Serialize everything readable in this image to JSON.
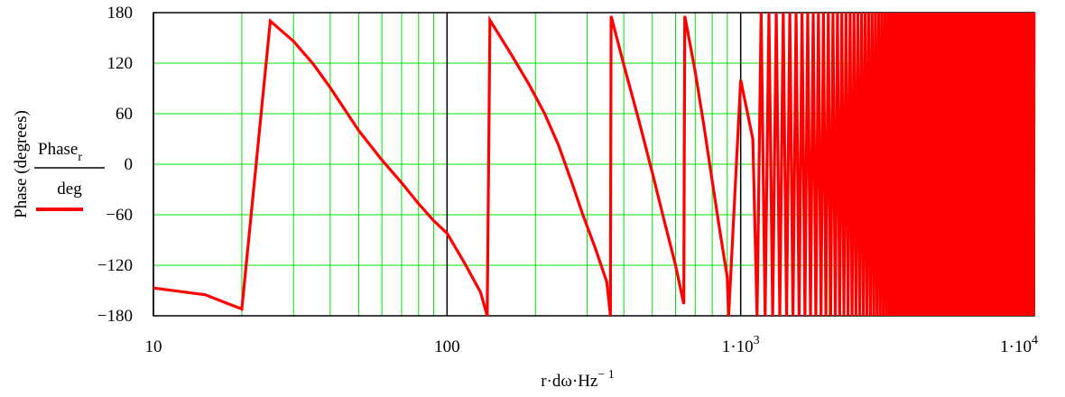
{
  "chart_data": {
    "type": "line",
    "x_scale": "log",
    "xlim": [
      10,
      10000
    ],
    "ylim": [
      -180,
      180
    ],
    "grid": true,
    "colors": {
      "series": "#ff0000",
      "minor_grid": "#00e000",
      "decade_grid": "#000000",
      "axes": "#000000"
    },
    "ylabel": "Phase (degrees)",
    "legend": {
      "numerator": "Phase",
      "subscript": "r",
      "denominator": "deg",
      "placement": "left"
    },
    "xlabel": {
      "base": "r·dω·Hz",
      "exponent": "− 1"
    },
    "yticks": [
      {
        "value": 180,
        "label": "180"
      },
      {
        "value": 120,
        "label": "120"
      },
      {
        "value": 60,
        "label": "60"
      },
      {
        "value": 0,
        "label": "0"
      },
      {
        "value": -60,
        "label": "−60"
      },
      {
        "value": -120,
        "label": "−120"
      },
      {
        "value": -180,
        "label": "−180"
      }
    ],
    "xticks": [
      {
        "value": 10,
        "label": "10",
        "sup": ""
      },
      {
        "value": 100,
        "label": "100",
        "sup": ""
      },
      {
        "value": 1000,
        "label": "1·10",
        "sup": "3"
      },
      {
        "value": 10000,
        "label": "1·10",
        "sup": "4"
      }
    ],
    "series": [
      {
        "x": [
          10,
          15,
          20,
          25,
          30,
          35,
          40,
          50,
          60,
          70,
          80,
          90,
          100,
          115,
          130,
          137,
          140,
          165,
          190,
          215,
          240,
          265,
          290,
          320,
          350,
          360,
          362,
          400,
          450,
          500,
          550,
          600,
          640,
          645,
          700,
          750,
          800,
          850,
          900,
          910,
          1000,
          1100
        ],
        "y": [
          -147,
          -155,
          -172,
          170,
          146,
          119,
          91,
          40,
          5,
          -22,
          -47,
          -67,
          -82,
          -118,
          -152,
          -180,
          171,
          131,
          95,
          60,
          22,
          -20,
          -60,
          -100,
          -140,
          -180,
          176,
          118,
          52,
          -10,
          -68,
          -120,
          -166,
          176,
          110,
          45,
          -20,
          -80,
          -134,
          -180,
          100,
          30
        ]
      }
    ],
    "dense_oscillation": {
      "x_start": 1050,
      "x_end": 10000,
      "spacing": 37,
      "y_min": -180,
      "y_max": 180
    }
  }
}
